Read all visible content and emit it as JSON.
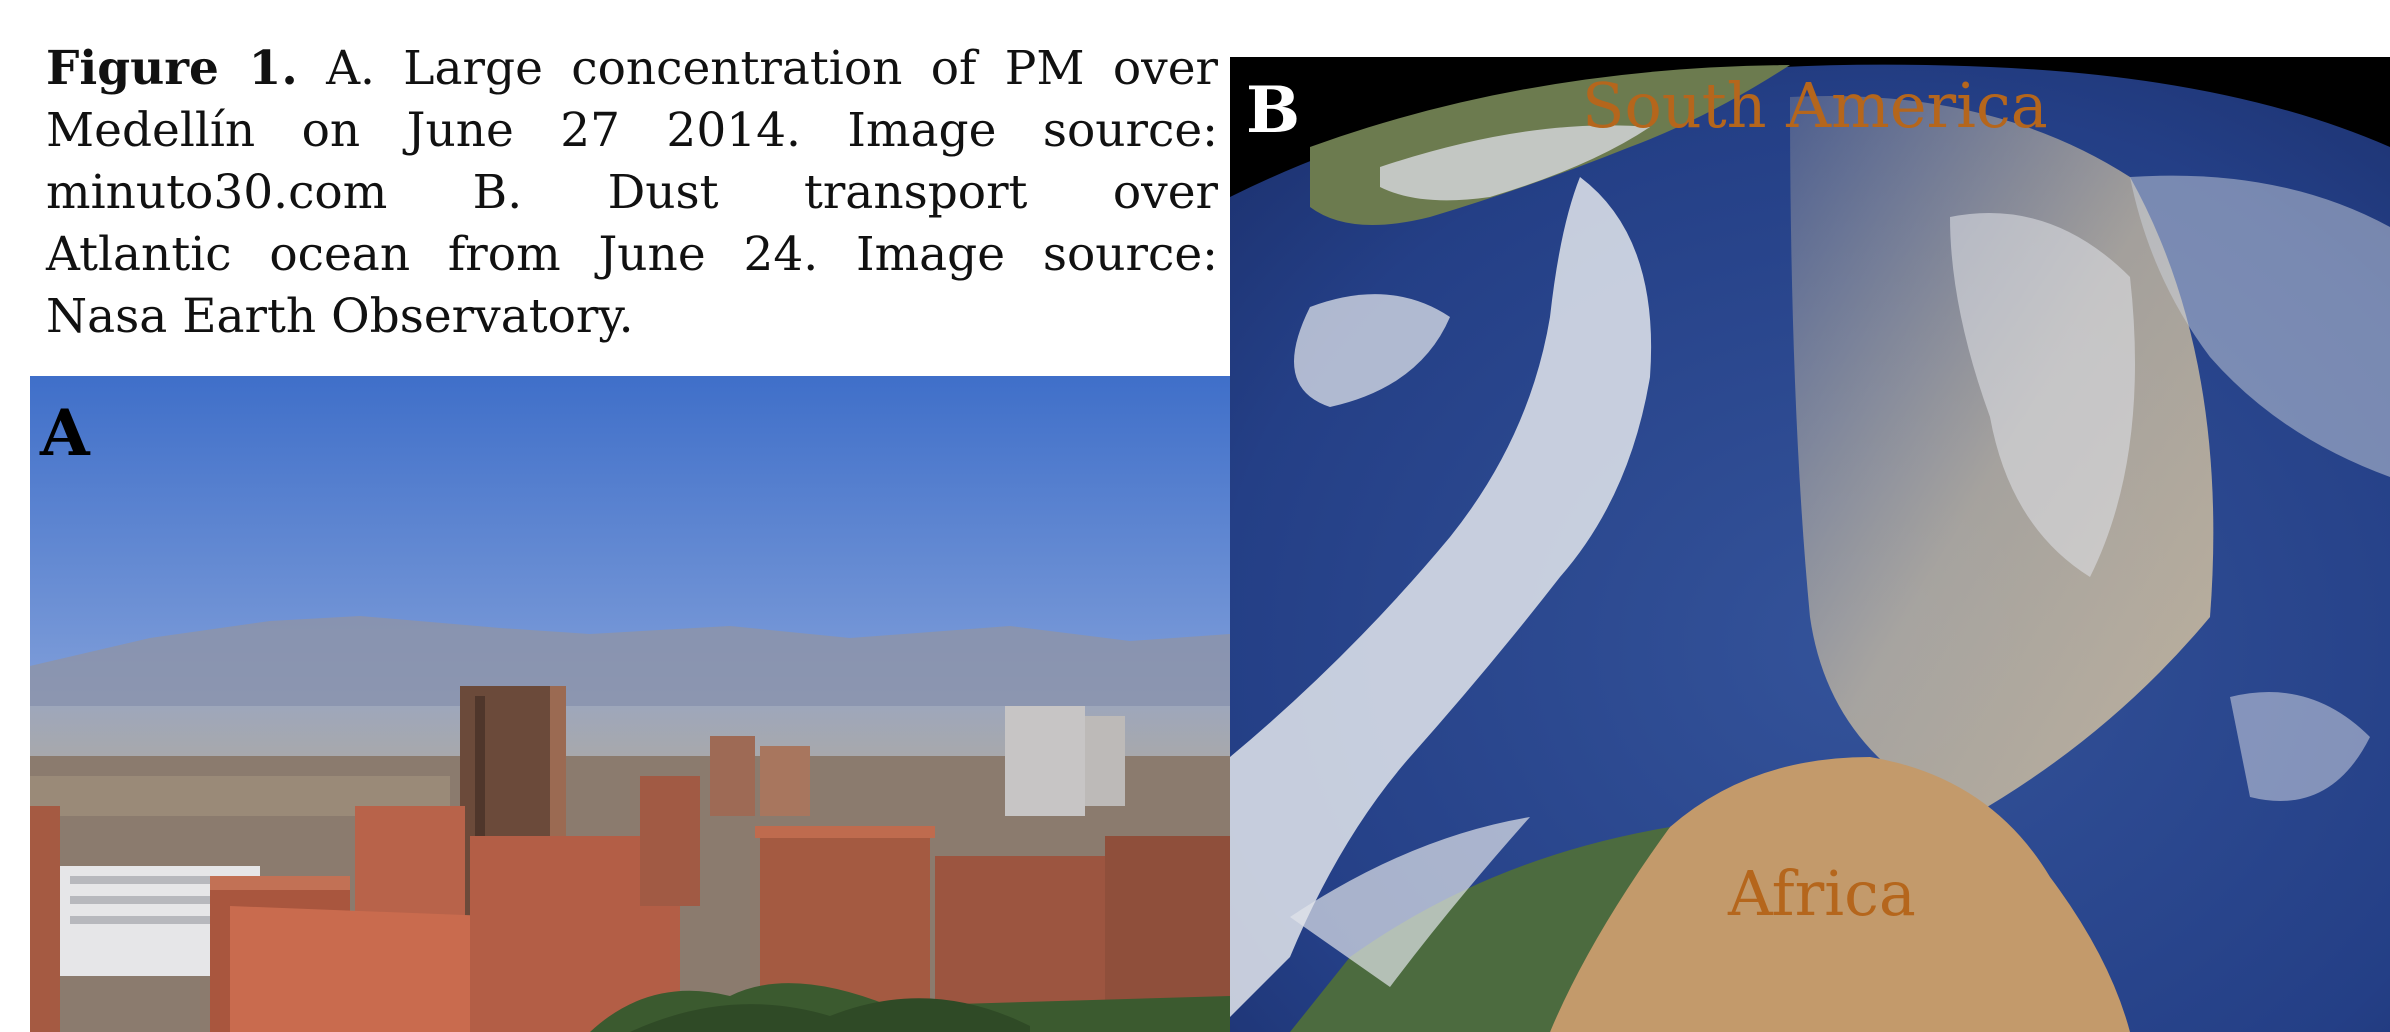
{
  "caption": {
    "figure_label": "Figure 1.",
    "lines": [
      " A. Large concentration of PM over",
      "Medellín on June 27 2014. Image source:",
      "minuto30.com B. Dust transport over",
      "Atlantic ocean from June 24. Image source:",
      "Nasa Earth Observatory."
    ]
  },
  "panel_a": {
    "letter": "A",
    "image": "photo of Medellín skyline with hazy sky"
  },
  "panel_b": {
    "letter": "B",
    "image": "satellite view of dust plume over Atlantic",
    "labels": {
      "south_america": "South America",
      "africa": "Africa"
    },
    "label_color": "#b5661c"
  }
}
